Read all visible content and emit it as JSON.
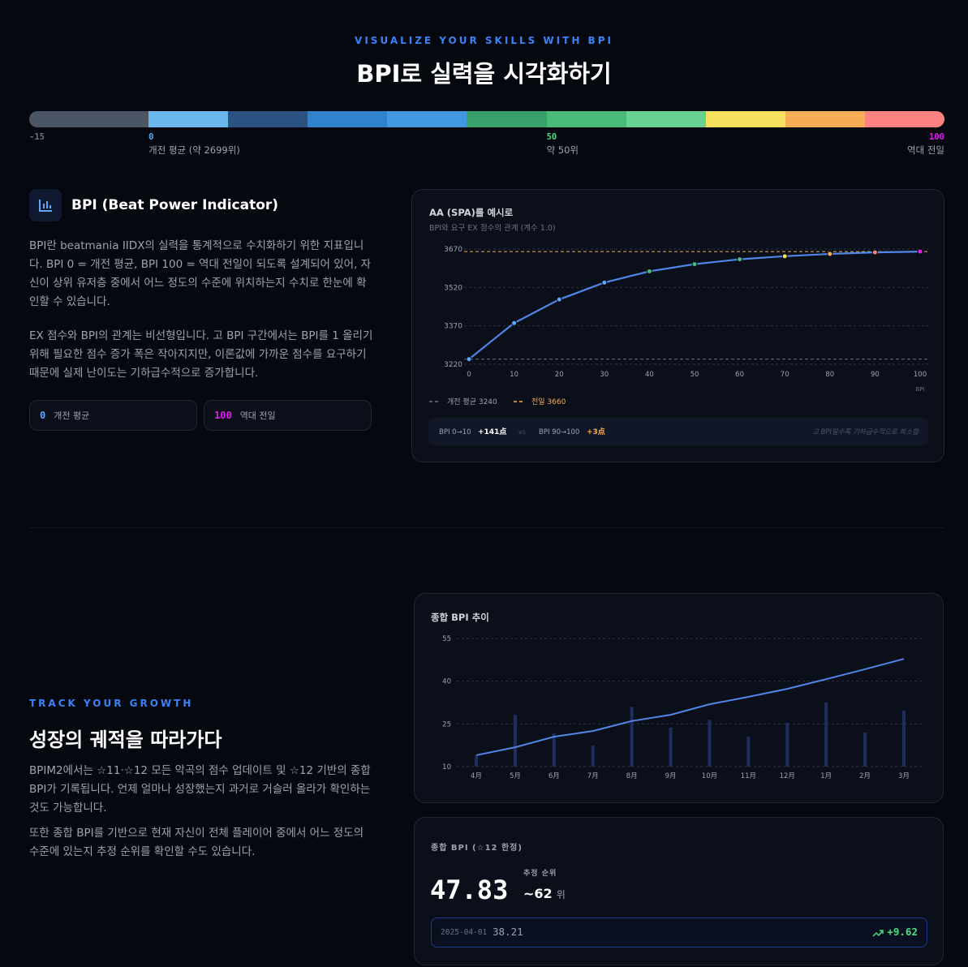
{
  "header": {
    "eyebrow": "VISUALIZE YOUR SKILLS WITH BPI",
    "title": "BPI로 실력을 시각화하기"
  },
  "scale": {
    "xlim": [
      -15,
      100
    ],
    "bounds": [
      -15,
      0,
      10,
      20,
      30,
      40,
      50,
      60,
      70,
      80,
      90,
      100
    ],
    "colors": [
      "#4b5563",
      "#6cb6ee",
      "#2c5282",
      "#3182ce",
      "#4299e1",
      "#38a169",
      "#48bb78",
      "#68d391",
      "#f6e05e",
      "#f6ad55",
      "#fc8181"
    ],
    "ticks": [
      {
        "value": -15,
        "label": "-15",
        "color": "#6b7280"
      },
      {
        "value": 0,
        "label": "0",
        "note": "개전 평균 (약 2699위)",
        "color": "#60a5fa"
      },
      {
        "value": 50,
        "label": "50",
        "note": "약 50위",
        "color": "#4ade80"
      },
      {
        "value": 100,
        "label": "100",
        "note": "역대 전일",
        "color": "#e21cf0"
      }
    ]
  },
  "about": {
    "title": "BPI (Beat Power Indicator)",
    "paragraphs": [
      "BPI란 beatmania IIDX의 실력을 통계적으로 수치화하기 위한 지표입니다. BPI 0 = 개전 평균, BPI 100 = 역대 전일이 되도록 설계되어 있어, 자신이 상위 유저층 중에서 어느 정도의 수준에 위치하는지 수치로 한눈에 확인할 수 있습니다.",
      "EX 점수와 BPI의 관계는 비선형입니다. 고 BPI 구간에서는 BPI를 1 올리기 위해 필요한 점수 증가 폭은 작아지지만, 이론값에 가까운 점수를 요구하기 때문에 실제 난이도는 기하급수적으로 증가합니다."
    ],
    "badges": [
      {
        "value": "0",
        "label": "개전 평균"
      },
      {
        "value": "100",
        "label": "역대 전일"
      }
    ]
  },
  "chart1": {
    "type": "line",
    "title": "AA (SPA)를 예시로",
    "subtitle": "BPI와 요구 EX 점수의 관계 (계수 1.0)",
    "x": [
      0,
      10,
      20,
      30,
      40,
      50,
      60,
      70,
      80,
      90,
      100
    ],
    "values": [
      3240,
      3381,
      3473,
      3539,
      3583,
      3611,
      3630,
      3642,
      3651,
      3657,
      3660
    ],
    "color": "#4f86e8",
    "point_colors": [
      "#60a5fa",
      "#60a5fa",
      "#60a5fa",
      "#60a5fa",
      "#48bb78",
      "#48bb78",
      "#48bb78",
      "#f6e05e",
      "#f6ad55",
      "#fc8181",
      "#e21cf0"
    ],
    "xlim": [
      0,
      100
    ],
    "ylim": [
      3220,
      3670
    ],
    "xticks": [
      0,
      10,
      20,
      30,
      40,
      50,
      60,
      70,
      80,
      90,
      100
    ],
    "yticks": [
      3220,
      3370,
      3520,
      3670
    ],
    "x_label": "BPI",
    "grid": true,
    "reference_lines": [
      {
        "label": "개전 평균 3240",
        "value": 3240,
        "color": "#6b7280"
      },
      {
        "label": "전일 3660",
        "value": 3660,
        "color": "#f6ad55"
      }
    ],
    "comparison": {
      "a_label": "BPI 0→10",
      "a_value": "+141点",
      "vs": "vs",
      "b_label": "BPI 90→100",
      "b_value": "+3点",
      "note": "고 BPI일수록 기하급수적으로 희소함"
    }
  },
  "growth": {
    "eyebrow": "TRACK YOUR GROWTH",
    "title": "성장의 궤적을 따라가다",
    "paragraphs": [
      "BPIM2에서는 ☆11·☆12 모든 악곡의 점수 업데이트 및 ☆12 기반의 종합 BPI가 기록됩니다. 언제 얼마나 성장했는지 과거로 거슬러 올라가 확인하는 것도 가능합니다.",
      "또한 종합 BPI를 기반으로 현재 자신이 전체 플레이어 중에서 어느 정도의 수준에 있는지 추정 순위를 확인할 수도 있습니다."
    ]
  },
  "chart2": {
    "type": "line",
    "title": "종합 BPI 추이",
    "categories": [
      "4月",
      "5月",
      "6月",
      "7月",
      "8月",
      "9月",
      "10月",
      "11月",
      "12月",
      "1月",
      "2月",
      "3月"
    ],
    "series": [
      {
        "type": "bar",
        "color": "#1b2f5e",
        "values": [
          14,
          28.2,
          21.7,
          17.4,
          31,
          23.7,
          26.5,
          20.5,
          25.4,
          32.5,
          22,
          29.7
        ]
      },
      {
        "type": "line",
        "color": "#4f86e8",
        "values": [
          14,
          16.8,
          20.5,
          22.5,
          26,
          28.2,
          31.9,
          34.5,
          37.3,
          40.7,
          44.2,
          47.83
        ]
      }
    ],
    "ylim": [
      10,
      55
    ],
    "yticks": [
      10,
      25,
      40,
      55
    ],
    "grid": true
  },
  "stats": {
    "label": "종합 BPI (☆12 한정)",
    "value": "47.83",
    "rank_label": "추정 순위",
    "rank": "~62",
    "rank_unit": "위",
    "history_date": "2025-04-01",
    "history_value": "38.21",
    "delta": "+9.62"
  }
}
